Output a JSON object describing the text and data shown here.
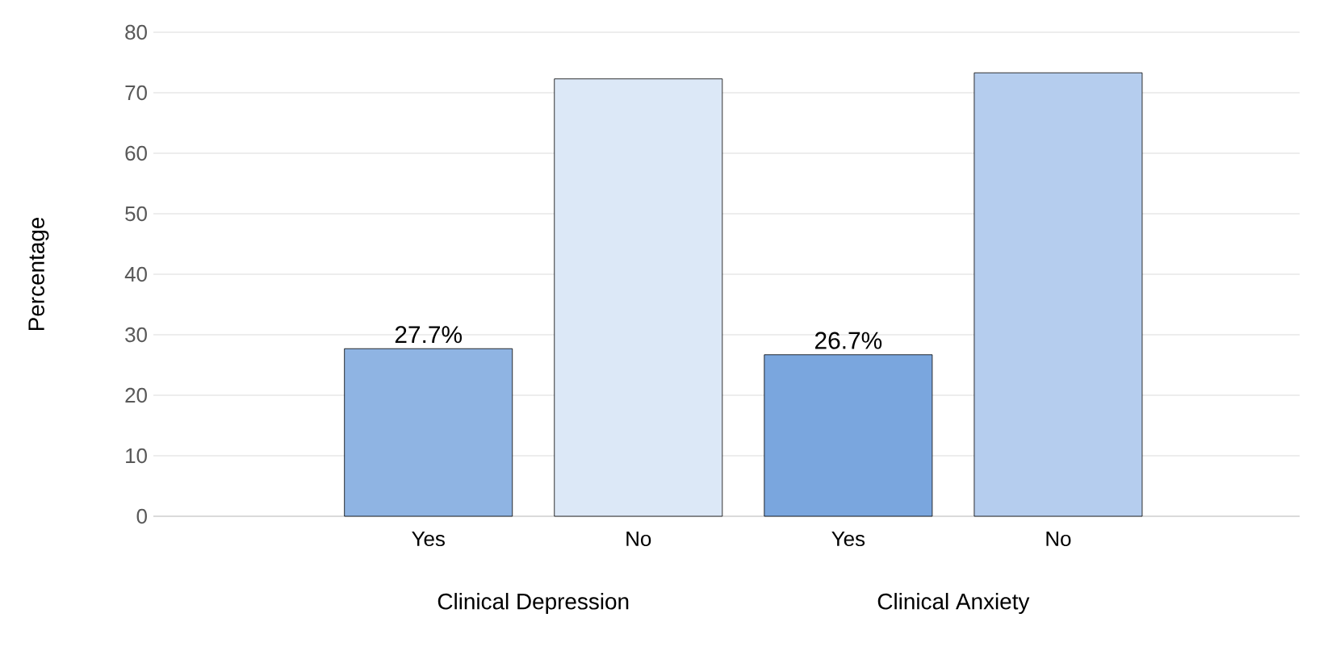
{
  "chart_data": {
    "type": "bar",
    "ylabel": "Percentage",
    "categories": [
      "Yes",
      "No",
      "Yes",
      "No"
    ],
    "values": [
      27.7,
      72.3,
      26.7,
      73.3
    ],
    "colors": [
      "#8fb4e3",
      "#dce8f7",
      "#7aa6de",
      "#b5cdee"
    ],
    "value_labels": [
      "27.7%",
      null,
      "26.7%",
      null
    ],
    "annotations": [
      "Clinical Depression",
      "Clinical Anxiety"
    ],
    "ylim": [
      0,
      80
    ],
    "yticks": [
      0,
      10,
      20,
      30,
      40,
      50,
      60,
      70,
      80
    ],
    "grid": "y"
  }
}
